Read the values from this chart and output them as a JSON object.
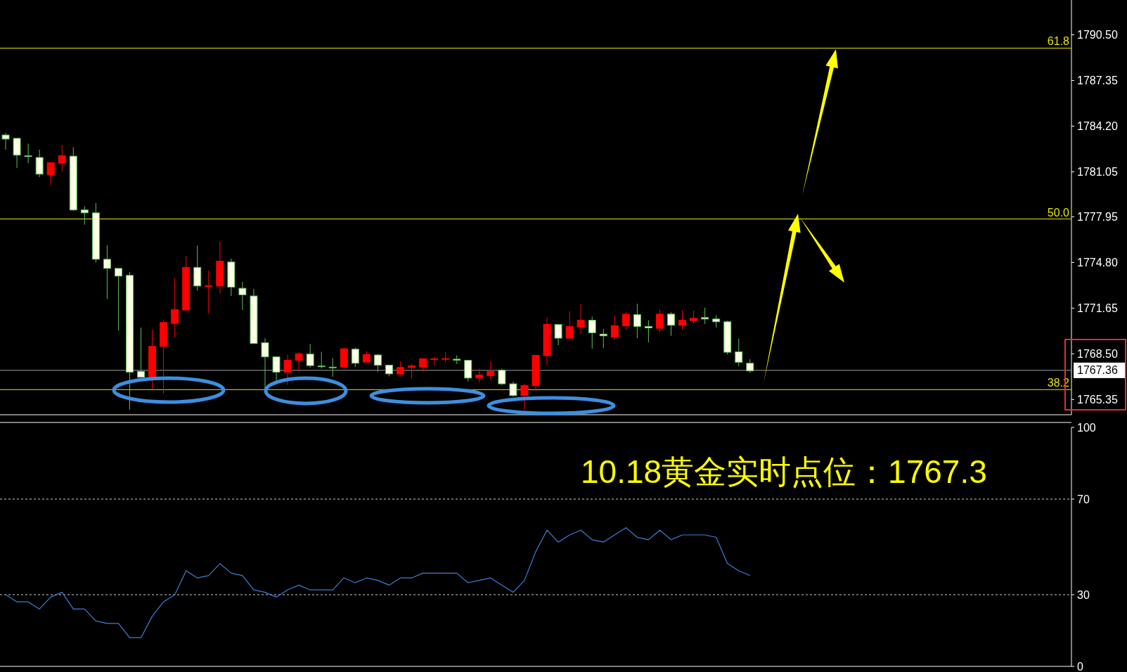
{
  "chart_data": [
    {
      "type": "candlestick",
      "annotations": [
        "10.18黄金实时点位：1767.3",
        "61.8",
        "50.0",
        "38.2"
      ],
      "categories": [
        null,
        null,
        null,
        null,
        null,
        null,
        null,
        null,
        null,
        null,
        null,
        null,
        null,
        null,
        null,
        null,
        null,
        null,
        null,
        null,
        null,
        null,
        null,
        null,
        null,
        null,
        null,
        null,
        null,
        null,
        null,
        null,
        null,
        null,
        null,
        null,
        null,
        null,
        null,
        null,
        null,
        null,
        null,
        null,
        null,
        null,
        null,
        null,
        null,
        null,
        null,
        null,
        null,
        null,
        null,
        null,
        null,
        null,
        null,
        null,
        null,
        null,
        null,
        null,
        null,
        null,
        null,
        null,
        null,
        null,
        null,
        null,
        null,
        null,
        null,
        null,
        null,
        null,
        null,
        null,
        null,
        null,
        null,
        null,
        null,
        null,
        null,
        null,
        null,
        null,
        null,
        null,
        null,
        null,
        null
      ],
      "ohlc": [
        [
          1783.59,
          1783.72,
          1782.58,
          1783.31
        ],
        [
          1783.36,
          1783.36,
          1781.32,
          1782.2
        ],
        [
          1782.16,
          1782.99,
          1781.64,
          1782.1
        ],
        [
          1782.04,
          1782.58,
          1780.68,
          1780.89
        ],
        [
          1780.84,
          1781.68,
          1780.16,
          1781.68
        ],
        [
          1781.65,
          1782.91,
          1781.05,
          1782.16
        ],
        [
          1782.13,
          1782.75,
          1778.35,
          1778.42
        ],
        [
          1778.42,
          1778.68,
          1777.41,
          1778.22
        ],
        [
          1778.22,
          1778.9,
          1774.8,
          1775.02
        ],
        [
          1775.02,
          1775.99,
          1772.28,
          1774.39
        ],
        [
          1774.39,
          1774.39,
          1770.11,
          1773.86
        ],
        [
          1773.91,
          1774.15,
          1764.65,
          1767.24
        ],
        [
          1767.29,
          1770.31,
          1766.88,
          1766.88
        ],
        [
          1766.91,
          1770.18,
          1766.07,
          1769.01
        ],
        [
          1769.01,
          1770.87,
          1765.75,
          1770.66
        ],
        [
          1770.6,
          1773.73,
          1769.63,
          1771.55
        ],
        [
          1771.52,
          1775.23,
          1771.52,
          1774.46
        ],
        [
          1774.46,
          1775.96,
          1772.86,
          1773.18
        ],
        [
          1773.17,
          1774.26,
          1771.28,
          1773.2
        ],
        [
          1773.18,
          1776.25,
          1772.65,
          1774.89
        ],
        [
          1774.83,
          1775.07,
          1772.49,
          1773.1
        ],
        [
          1773.02,
          1773.46,
          1771.52,
          1772.57
        ],
        [
          1772.49,
          1772.97,
          1769.21,
          1769.21
        ],
        [
          1769.26,
          1769.58,
          1766.03,
          1768.29
        ],
        [
          1768.29,
          1768.29,
          1766.59,
          1767.24
        ],
        [
          1767.24,
          1768.45,
          1766.35,
          1768.05
        ],
        [
          1768.05,
          1768.61,
          1767.32,
          1768.5
        ],
        [
          1768.48,
          1769.18,
          1767.56,
          1767.69
        ],
        [
          1767.66,
          1768.64,
          1767.48,
          1767.62
        ],
        [
          1767.58,
          1768.21,
          1766.91,
          1767.54
        ],
        [
          1767.59,
          1768.88,
          1767.53,
          1768.85
        ],
        [
          1768.82,
          1768.93,
          1767.59,
          1767.85
        ],
        [
          1767.93,
          1768.69,
          1767.93,
          1768.45
        ],
        [
          1768.42,
          1768.5,
          1767.27,
          1767.72
        ],
        [
          1767.72,
          1767.75,
          1766.95,
          1767.12
        ],
        [
          1767.11,
          1767.96,
          1767.0,
          1767.56
        ],
        [
          1767.56,
          1767.8,
          1766.78,
          1767.67
        ],
        [
          1767.59,
          1768.21,
          1767.27,
          1768.16
        ],
        [
          1768.11,
          1768.29,
          1767.72,
          1768.16
        ],
        [
          1768.13,
          1768.61,
          1767.93,
          1768.17
        ],
        [
          1768.13,
          1768.4,
          1767.8,
          1768.06
        ],
        [
          1768.05,
          1768.08,
          1766.59,
          1766.83
        ],
        [
          1766.83,
          1767.48,
          1766.51,
          1767.04
        ],
        [
          1767.0,
          1767.96,
          1766.72,
          1767.29
        ],
        [
          1767.37,
          1767.48,
          1766.35,
          1766.43
        ],
        [
          1766.43,
          1766.59,
          1765.54,
          1765.62
        ],
        [
          1765.62,
          1766.43,
          1764.62,
          1766.32
        ],
        [
          1766.3,
          1768.4,
          1765.95,
          1768.4
        ],
        [
          1768.37,
          1770.99,
          1767.75,
          1770.53
        ],
        [
          1770.52,
          1770.52,
          1769.1,
          1769.58
        ],
        [
          1769.58,
          1771.44,
          1769.55,
          1770.39
        ],
        [
          1770.36,
          1771.95,
          1769.86,
          1770.82
        ],
        [
          1770.82,
          1771.07,
          1768.85,
          1769.95
        ],
        [
          1769.86,
          1770.23,
          1768.9,
          1769.74
        ],
        [
          1769.66,
          1771.15,
          1769.47,
          1770.44
        ],
        [
          1770.44,
          1771.36,
          1770.15,
          1771.23
        ],
        [
          1771.2,
          1771.95,
          1769.58,
          1770.39
        ],
        [
          1770.39,
          1770.82,
          1769.29,
          1770.29
        ],
        [
          1770.26,
          1771.57,
          1769.98,
          1771.24
        ],
        [
          1771.24,
          1771.36,
          1769.74,
          1770.47
        ],
        [
          1770.47,
          1771.5,
          1770.15,
          1770.82
        ],
        [
          1770.79,
          1771.47,
          1770.58,
          1770.95
        ],
        [
          1771.0,
          1771.68,
          1770.55,
          1770.9
        ],
        [
          1770.9,
          1771.16,
          1770.31,
          1770.71
        ],
        [
          1770.71,
          1770.79,
          1768.45,
          1768.61
        ],
        [
          1768.64,
          1769.55,
          1767.64,
          1767.92
        ],
        [
          1767.85,
          1768.13,
          1767.2,
          1767.32
        ],
        null,
        null,
        null,
        null,
        null,
        null,
        null,
        null,
        null,
        null,
        null,
        null,
        null,
        null,
        null,
        null,
        null,
        null,
        null,
        null,
        null,
        null,
        null,
        null,
        null,
        null,
        null,
        null
      ],
      "colors": [
        "#ffffe6",
        "#ffffe6",
        "#ffffe6",
        "#ffffe6",
        "#ff0000",
        "#ff0000",
        "#ffffe6",
        "#ffffe6",
        "#ffffe6",
        "#ffffe6",
        "#ffffe6",
        "#ffffe6",
        "#ffffe6",
        "#ff0000",
        "#ff0000",
        "#ff0000",
        "#ff0000",
        "#ffffe6",
        "#ff0000",
        "#ff0000",
        "#ffffe6",
        "#ffffe6",
        "#ffffe6",
        "#ffffe6",
        "#ffffe6",
        "#ff0000",
        "#ff0000",
        "#ffffe6",
        "#ffffe6",
        "#ffffe6",
        "#ff0000",
        "#ffffe6",
        "#ff0000",
        "#ffffe6",
        "#ffffe6",
        "#ff0000",
        "#ff0000",
        "#ff0000",
        "#ff0000",
        "#ff0000",
        "#ffffe6",
        "#ffffe6",
        "#ff0000",
        "#ff0000",
        "#ffffe6",
        "#ffffe6",
        "#ff0000",
        "#ff0000",
        "#ff0000",
        "#ffffe6",
        "#ff0000",
        "#ff0000",
        "#ffffe6",
        "#ffffe6",
        "#ff0000",
        "#ff0000",
        "#ffffe6",
        "#ffffe6",
        "#ff0000",
        "#ffffe6",
        "#ff0000",
        "#ff0000",
        "#ffffe6",
        "#ffffe6",
        "#ffffe6",
        "#ffffe6",
        "#ffffe6",
        null,
        null,
        null,
        null,
        null,
        null,
        null,
        null,
        null,
        null,
        null,
        null,
        null,
        null,
        null,
        null,
        null,
        null,
        null,
        null,
        null,
        null,
        null,
        null,
        null,
        null,
        null,
        null
      ],
      "ylim": [
        1764.3,
        1792.9
      ],
      "yticks": [
        {
          "value": 1790.5,
          "label": "1790.50"
        },
        1787.35,
        {
          "value": 1784.2,
          "label": "1784.20"
        },
        1781.05,
        1777.95,
        {
          "value": 1774.8,
          "label": "1774.80"
        },
        1771.65,
        {
          "value": 1768.5,
          "label": "1768.50"
        },
        1765.35
      ],
      "tick_labels": "y",
      "ref_lines": [
        {
          "axis": "y",
          "value": 1789.58,
          "color": "#e6e600"
        },
        {
          "axis": "y",
          "value": 1777.8,
          "color": "#e6e600"
        },
        {
          "axis": "y",
          "value": 1766.03,
          "color": "#e6e600"
        },
        {
          "axis": "y",
          "value": 1767.36,
          "label": "1767.36",
          "color": "#a0a0a0"
        }
      ]
    },
    {
      "type": "line",
      "categories": [
        null,
        null,
        null,
        null,
        null,
        null,
        null,
        null,
        null,
        null,
        null,
        null,
        null,
        null,
        null,
        null,
        null,
        null,
        null,
        null,
        null,
        null,
        null,
        null,
        null,
        null,
        null,
        null,
        null,
        null,
        null,
        null,
        null,
        null,
        null,
        null,
        null,
        null,
        null,
        null,
        null,
        null,
        null,
        null,
        null,
        null,
        null,
        null,
        null,
        null,
        null,
        null,
        null,
        null,
        null,
        null,
        null,
        null,
        null,
        null,
        null,
        null,
        null,
        null,
        null,
        null,
        null,
        null,
        null,
        null,
        null,
        null,
        null,
        null,
        null,
        null,
        null,
        null,
        null,
        null,
        null,
        null,
        null,
        null,
        null,
        null,
        null,
        null,
        null,
        null,
        null,
        null,
        null,
        null,
        null
      ],
      "series": [
        {
          "color": "#3d7fd8",
          "values": [
            30,
            27,
            27,
            24,
            29,
            31,
            24,
            24,
            19,
            18,
            18,
            12,
            12,
            21,
            27,
            30,
            40,
            37,
            38,
            43,
            39,
            38,
            32,
            31,
            29,
            32,
            34,
            32,
            32,
            32,
            37,
            35,
            37,
            36,
            34,
            37,
            37,
            39,
            39,
            39,
            39,
            35,
            36,
            37,
            34,
            31,
            36,
            48,
            57,
            52,
            55,
            57,
            53,
            52,
            55,
            58,
            54,
            53,
            57,
            53,
            55,
            55,
            55,
            54,
            43,
            40,
            38,
            null,
            null,
            null,
            null,
            null,
            null,
            null,
            null,
            null,
            null,
            null,
            null,
            null,
            null,
            null,
            null,
            null,
            null,
            null,
            null,
            null,
            null,
            null,
            null,
            null,
            null,
            null,
            null
          ]
        }
      ],
      "ylim": [
        0,
        100
      ],
      "yticks": [
        0,
        30,
        70,
        100
      ],
      "tick_labels": "y",
      "ref_lines": [
        {
          "axis": "y",
          "value": 70,
          "color": "#d0d0d0",
          "line_style": "dashed"
        },
        {
          "axis": "y",
          "value": 30,
          "color": "#d0d0d0",
          "line_style": "dashed"
        }
      ]
    }
  ]
}
